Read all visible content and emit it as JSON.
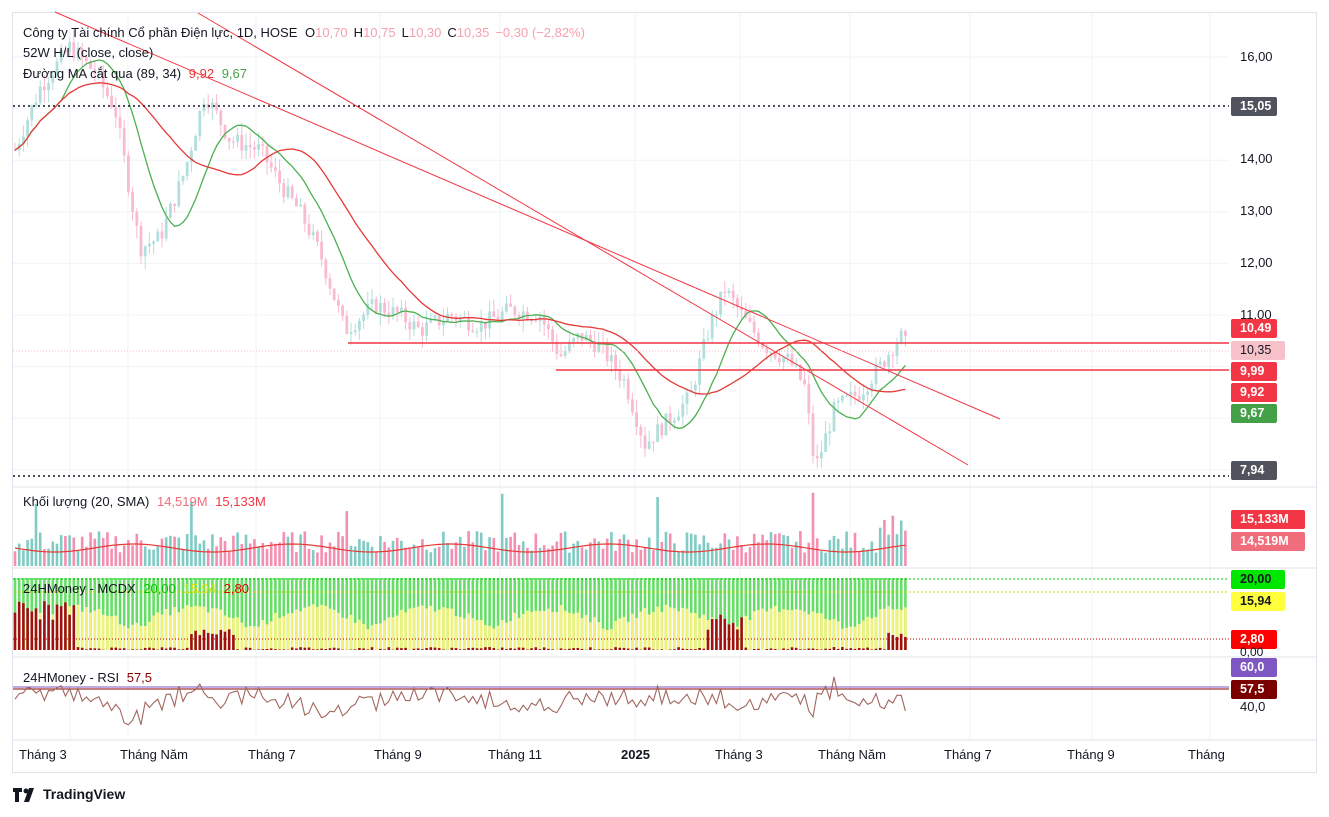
{
  "header": {
    "title": "Công ty Tài chính Cổ phần Điện lực, 1D, HOSE",
    "o_label": "O",
    "o_value": "10,70",
    "h_label": "H",
    "h_value": "10,75",
    "l_label": "L",
    "l_value": "10,30",
    "c_label": "C",
    "c_value": "10,35",
    "change": "−0,30 (−2,82%)",
    "indicator_1": "52W H/L (close, close)",
    "indicator_2_name": "Đường MA cắt qua (89, 34)",
    "indicator_2_v1": "9,92",
    "indicator_2_v2": "9,67"
  },
  "volume_legend": {
    "name": "Khối lượng (20, SMA)",
    "v1": "14,519M",
    "v2": "15,133M"
  },
  "mcdx_legend": {
    "name": "24HMoney - MCDX",
    "v1": "20,00",
    "v2": "15,94",
    "v3": "2,80"
  },
  "rsi_legend": {
    "name": "24HMoney - RSI",
    "v1": "57,5"
  },
  "price_axis": {
    "ticks": [
      "16,00",
      "14,00",
      "13,00",
      "12,00",
      "11,00"
    ]
  },
  "price_badges": [
    {
      "text": "15,05",
      "color": "#50535e"
    },
    {
      "text": "10,49",
      "color": "#f23645"
    },
    {
      "text": "10,35",
      "color": "#f7c1c9",
      "text_color": "#131722"
    },
    {
      "text": "9,99",
      "color": "#f23645"
    },
    {
      "text": "9,92",
      "color": "#f23645"
    },
    {
      "text": "9,67",
      "color": "#43a047"
    },
    {
      "text": "7,94",
      "color": "#50535e"
    }
  ],
  "volume_badges": [
    {
      "text": "15,133M",
      "color": "#f23645"
    },
    {
      "text": "14,519M",
      "color": "#f06e7c"
    }
  ],
  "mcdx_badges": [
    {
      "text": "20,00",
      "color": "#00e600",
      "text_color": "#131722"
    },
    {
      "text": "15,94",
      "color": "#ffff3b",
      "text_color": "#131722"
    },
    {
      "text": "2,80",
      "color": "#ff0000"
    }
  ],
  "mcdx_axis": {
    "low": "0,00"
  },
  "rsi_badges": [
    {
      "text": "60,0",
      "color": "#7e57c2"
    },
    {
      "text": "57,5",
      "color": "#7a0000"
    }
  ],
  "rsi_axis": {
    "low": "40,0"
  },
  "time_axis": [
    "Tháng 3",
    "Tháng Năm",
    "Tháng 7",
    "Tháng 9",
    "Tháng 11",
    "2025",
    "Tháng 3",
    "Tháng Năm",
    "Tháng 7",
    "Tháng 9",
    "Tháng"
  ],
  "brand": "TradingView",
  "colors": {
    "up": "#26a69a",
    "down": "#ef5350",
    "ma_fast": "#4caf50",
    "ma_slow": "#e53935",
    "trend": "#f23645"
  },
  "chart_data": {
    "type": "line",
    "series": [
      {
        "name": "Đường MA cắt qua (89, 34)",
        "values": [
          9.92,
          9.67
        ]
      }
    ],
    "ohlc_last": {
      "open": 10.7,
      "high": 10.75,
      "low": 10.3,
      "close": 10.35,
      "change": -0.3,
      "change_pct": -2.82
    },
    "levels": {
      "w52_high": 15.05,
      "w52_low": 7.94,
      "resistance": 10.49,
      "support": 9.99
    },
    "volume_sma": [
      14.519,
      15.133
    ],
    "mcdx": [
      20.0,
      15.94,
      2.8
    ],
    "rsi": 57.5,
    "ylim": [
      7.5,
      16.5
    ]
  }
}
